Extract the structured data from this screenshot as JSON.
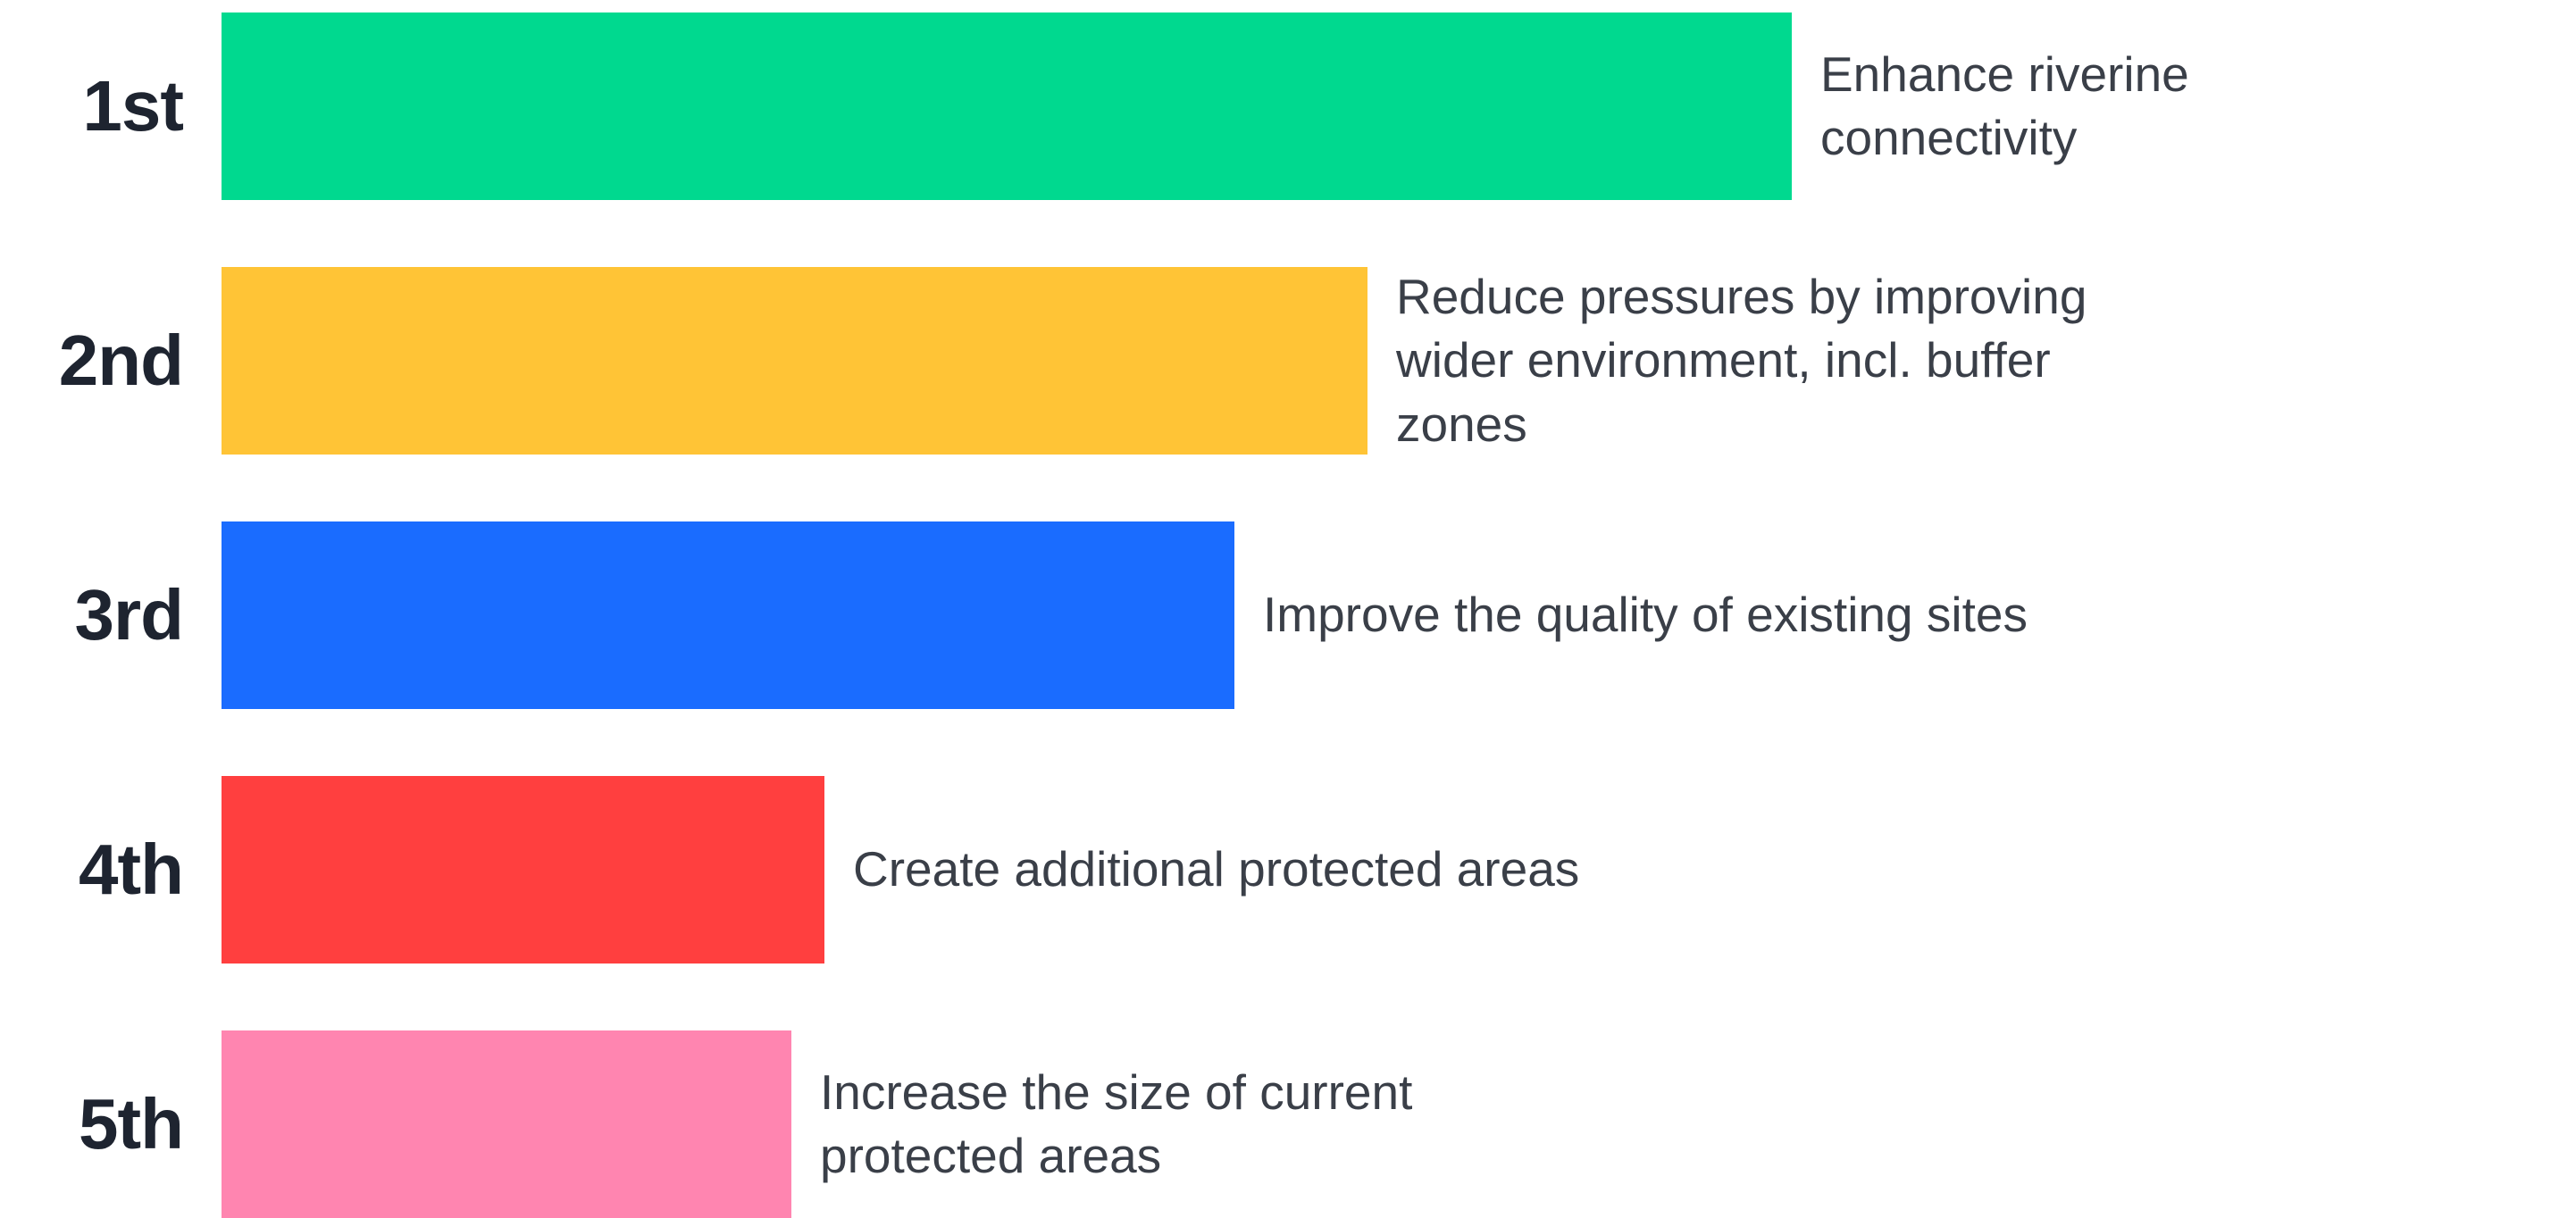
{
  "chart_data": {
    "type": "bar",
    "orientation": "horizontal",
    "categories": [
      "1st",
      "2nd",
      "3rd",
      "4th",
      "5th"
    ],
    "labels": [
      "Enhance riverine connectivity",
      "Reduce pressures by improving wider environment, incl. buffer zones",
      "Improve the quality of existing sites",
      "Create additional protected areas",
      "Increase the size of current protected areas"
    ],
    "values": [
      100,
      73,
      64.5,
      38.4,
      36.3
    ],
    "colors": [
      "#00d98f",
      "#ffc436",
      "#1a6cff",
      "#ff3f3f",
      "#ff85b0"
    ],
    "xlim": [
      0,
      100
    ],
    "grid": false,
    "legend": "none"
  }
}
